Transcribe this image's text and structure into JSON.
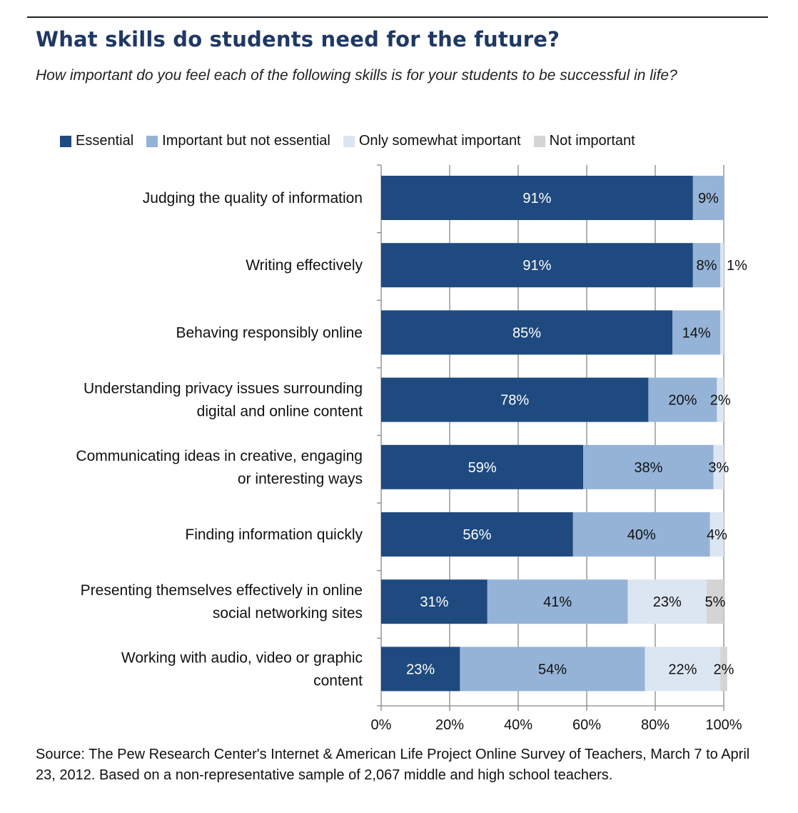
{
  "chart_data": {
    "type": "bar",
    "orientation": "horizontal",
    "stacked": true,
    "title": "What skills do students need for the future?",
    "subtitle": "How important do you feel each of the following skills is for your students to be successful in life?",
    "categories": [
      "Judging the quality of information",
      "Writing effectively",
      "Behaving responsibly online",
      "Understanding privacy issues surrounding digital and online content",
      "Communicating ideas in creative, engaging or interesting ways",
      "Finding information quickly",
      "Presenting themselves effectively in online social networking sites",
      "Working with audio, video or graphic content"
    ],
    "category_lines": [
      [
        "Judging the quality of information"
      ],
      [
        "Writing effectively"
      ],
      [
        "Behaving responsibly online"
      ],
      [
        "Understanding privacy issues surrounding",
        "digital and online content"
      ],
      [
        "Communicating ideas in creative, engaging",
        "or interesting ways"
      ],
      [
        "Finding information quickly"
      ],
      [
        "Presenting themselves effectively in online",
        "social networking sites"
      ],
      [
        "Working with audio, video or graphic",
        "content"
      ]
    ],
    "series": [
      {
        "name": "Essential",
        "color": "#1f4a7f",
        "label_color": "#ffffff",
        "values": [
          91,
          91,
          85,
          78,
          59,
          56,
          31,
          23
        ],
        "labels": [
          "91%",
          "91%",
          "85%",
          "78%",
          "59%",
          "56%",
          "31%",
          "23%"
        ]
      },
      {
        "name": "Important but not essential",
        "color": "#95b3d7",
        "label_color": "#111111",
        "values": [
          9,
          8,
          14,
          20,
          38,
          40,
          41,
          54
        ],
        "labels": [
          "9%",
          "8%",
          "14%",
          "20%",
          "38%",
          "40%",
          "41%",
          "54%"
        ]
      },
      {
        "name": "Only somewhat important",
        "color": "#dce6f2",
        "label_color": "#111111",
        "values": [
          0,
          1,
          1,
          2,
          3,
          4,
          23,
          22
        ],
        "labels": [
          "",
          "1%",
          "",
          "2%",
          "3%",
          "4%",
          "23%",
          "22%"
        ]
      },
      {
        "name": "Not important",
        "color": "#d4d4d4",
        "label_color": "#111111",
        "values": [
          0,
          0,
          0,
          0,
          0,
          0,
          5,
          2
        ],
        "labels": [
          "",
          "",
          "",
          "",
          "",
          "",
          "5%",
          "2%"
        ]
      }
    ],
    "xlim": [
      0,
      100
    ],
    "xticks": [
      "0%",
      "20%",
      "40%",
      "60%",
      "80%",
      "100%"
    ],
    "grid": true,
    "legend_position": "top"
  },
  "source": "Source: The Pew Research Center's Internet & American Life Project Online Survey of Teachers, March 7 to April 23, 2012.  Based on a non-representative sample of 2,067 middle and high school teachers."
}
